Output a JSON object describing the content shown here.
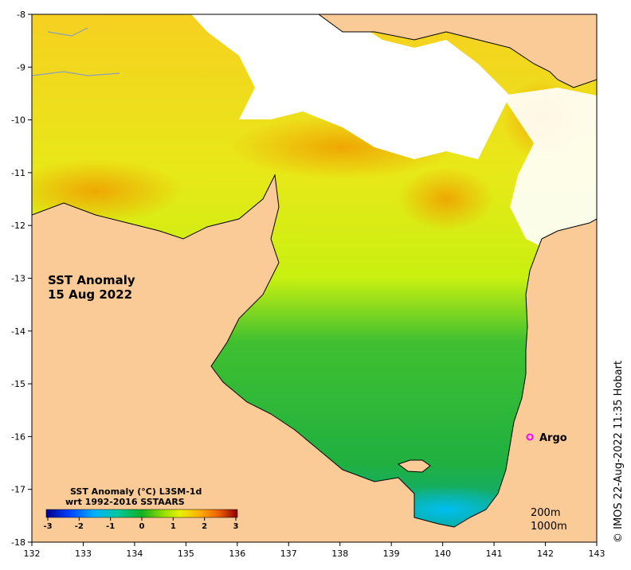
{
  "map": {
    "title_line1": "SST Anomaly",
    "title_line2": "15 Aug 2022",
    "x_ticks": [
      "132",
      "133",
      "134",
      "135",
      "136",
      "137",
      "138",
      "139",
      "140",
      "141",
      "142",
      "143"
    ],
    "y_ticks": [
      "-8",
      "-9",
      "-10",
      "-11",
      "-12",
      "-13",
      "-14",
      "-15",
      "-16",
      "-17",
      "-18"
    ],
    "argo_label": "Argo",
    "argo_marker_color": "#ff00ff",
    "depth_200": "200m",
    "depth_1000": "1000m",
    "credit": "© IMOS 22-Aug-2022 11:35 Hobart",
    "land_color": "#fbcb97"
  },
  "colorbar": {
    "title_line1": "SST Anomaly (°C) L3SM-1d",
    "title_line2": "wrt 1992-2016 SSTAARS",
    "ticks": [
      "-3",
      "-2",
      "-1",
      "0",
      "1",
      "2",
      "3"
    ],
    "colors": [
      "#00008b",
      "#0050ff",
      "#00c8ff",
      "#00c850",
      "#30c020",
      "#b8f000",
      "#ffe000",
      "#ff9a00",
      "#e04000",
      "#8b0000"
    ]
  }
}
